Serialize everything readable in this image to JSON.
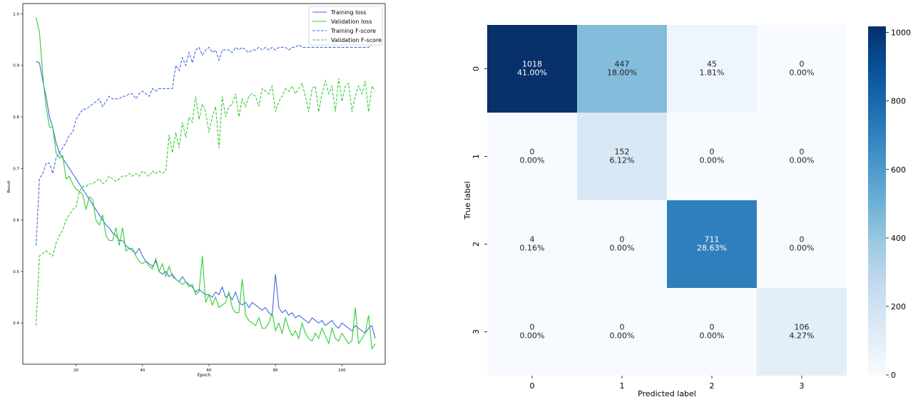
{
  "chart_data": [
    {
      "type": "line",
      "title": "",
      "xlabel": "Epoch",
      "ylabel": "Result",
      "xlim": [
        4,
        113
      ],
      "ylim": [
        0.32,
        1.02
      ],
      "xticks": [
        20,
        40,
        60,
        80,
        100
      ],
      "yticks": [
        0.4,
        0.5,
        0.6,
        0.7,
        0.8,
        0.9,
        1.0
      ],
      "grid": false,
      "legend_position": "top-right",
      "x": [
        8,
        9,
        10,
        11,
        12,
        13,
        14,
        15,
        16,
        17,
        18,
        19,
        20,
        21,
        22,
        23,
        24,
        25,
        26,
        27,
        28,
        29,
        30,
        31,
        32,
        33,
        34,
        35,
        36,
        37,
        38,
        39,
        40,
        41,
        42,
        43,
        44,
        45,
        46,
        47,
        48,
        49,
        50,
        51,
        52,
        53,
        54,
        55,
        56,
        57,
        58,
        59,
        60,
        61,
        62,
        63,
        64,
        65,
        66,
        67,
        68,
        69,
        70,
        71,
        72,
        73,
        74,
        75,
        76,
        77,
        78,
        79,
        80,
        81,
        82,
        83,
        84,
        85,
        86,
        87,
        88,
        89,
        90,
        91,
        92,
        93,
        94,
        95,
        96,
        97,
        98,
        99,
        100,
        101,
        102,
        103,
        104,
        105,
        106,
        107,
        108,
        109,
        110
      ],
      "series": [
        {
          "name": "Training loss",
          "color": "#4169e1",
          "dash": "solid",
          "values": [
            0.908,
            0.905,
            0.87,
            0.84,
            0.8,
            0.78,
            0.75,
            0.73,
            0.72,
            0.71,
            0.7,
            0.69,
            0.68,
            0.67,
            0.66,
            0.65,
            0.64,
            0.63,
            0.62,
            0.61,
            0.6,
            0.59,
            0.585,
            0.575,
            0.57,
            0.56,
            0.56,
            0.55,
            0.545,
            0.54,
            0.535,
            0.545,
            0.53,
            0.52,
            0.515,
            0.51,
            0.52,
            0.5,
            0.495,
            0.5,
            0.49,
            0.495,
            0.485,
            0.48,
            0.49,
            0.48,
            0.475,
            0.47,
            0.46,
            0.465,
            0.46,
            0.455,
            0.455,
            0.45,
            0.46,
            0.455,
            0.47,
            0.45,
            0.455,
            0.445,
            0.46,
            0.44,
            0.435,
            0.44,
            0.43,
            0.44,
            0.435,
            0.43,
            0.425,
            0.43,
            0.42,
            0.415,
            0.495,
            0.43,
            0.42,
            0.425,
            0.415,
            0.42,
            0.41,
            0.415,
            0.41,
            0.405,
            0.4,
            0.41,
            0.405,
            0.4,
            0.405,
            0.395,
            0.4,
            0.405,
            0.395,
            0.39,
            0.4,
            0.395,
            0.39,
            0.385,
            0.395,
            0.39,
            0.385,
            0.38,
            0.39,
            0.395,
            0.37
          ]
        },
        {
          "name": "Validation loss",
          "color": "#32cd32",
          "dash": "solid",
          "values": [
            0.993,
            0.965,
            0.88,
            0.82,
            0.78,
            0.78,
            0.73,
            0.72,
            0.725,
            0.68,
            0.685,
            0.67,
            0.66,
            0.655,
            0.65,
            0.62,
            0.645,
            0.64,
            0.6,
            0.59,
            0.61,
            0.57,
            0.56,
            0.56,
            0.585,
            0.55,
            0.585,
            0.54,
            0.545,
            0.545,
            0.53,
            0.52,
            0.515,
            0.52,
            0.51,
            0.505,
            0.525,
            0.5,
            0.515,
            0.49,
            0.51,
            0.49,
            0.485,
            0.48,
            0.475,
            0.48,
            0.47,
            0.475,
            0.455,
            0.46,
            0.53,
            0.44,
            0.455,
            0.435,
            0.45,
            0.43,
            0.435,
            0.44,
            0.46,
            0.43,
            0.42,
            0.42,
            0.485,
            0.415,
            0.405,
            0.4,
            0.395,
            0.41,
            0.39,
            0.39,
            0.4,
            0.42,
            0.385,
            0.4,
            0.38,
            0.41,
            0.39,
            0.375,
            0.385,
            0.37,
            0.4,
            0.38,
            0.37,
            0.365,
            0.38,
            0.37,
            0.39,
            0.375,
            0.36,
            0.39,
            0.37,
            0.365,
            0.38,
            0.37,
            0.36,
            0.365,
            0.43,
            0.36,
            0.37,
            0.38,
            0.415,
            0.35,
            0.36
          ]
        },
        {
          "name": "Training F-score",
          "color": "#4169e1",
          "dash": "dashed",
          "values": [
            0.55,
            0.68,
            0.69,
            0.71,
            0.71,
            0.69,
            0.72,
            0.73,
            0.74,
            0.75,
            0.765,
            0.77,
            0.795,
            0.805,
            0.815,
            0.815,
            0.82,
            0.825,
            0.83,
            0.835,
            0.82,
            0.83,
            0.84,
            0.835,
            0.835,
            0.835,
            0.84,
            0.84,
            0.845,
            0.845,
            0.835,
            0.845,
            0.85,
            0.845,
            0.84,
            0.855,
            0.85,
            0.855,
            0.855,
            0.855,
            0.855,
            0.855,
            0.9,
            0.89,
            0.915,
            0.9,
            0.925,
            0.905,
            0.93,
            0.935,
            0.92,
            0.93,
            0.935,
            0.925,
            0.93,
            0.91,
            0.93,
            0.93,
            0.93,
            0.925,
            0.935,
            0.93,
            0.935,
            0.93,
            0.925,
            0.93,
            0.93,
            0.935,
            0.93,
            0.935,
            0.93,
            0.935,
            0.93,
            0.935,
            0.935,
            0.935,
            0.93,
            0.935,
            0.935,
            0.94,
            0.935,
            0.935,
            0.935,
            0.935,
            0.935,
            0.935,
            0.935,
            0.935,
            0.935,
            0.935,
            0.935,
            0.935,
            0.935,
            0.935,
            0.935,
            0.935,
            0.935,
            0.935,
            0.935,
            0.935,
            0.935,
            0.94,
            0.94
          ]
        },
        {
          "name": "Validation F-score",
          "color": "#32cd32",
          "dash": "dashed",
          "values": [
            0.395,
            0.53,
            0.535,
            0.54,
            0.535,
            0.53,
            0.555,
            0.57,
            0.58,
            0.6,
            0.61,
            0.62,
            0.625,
            0.655,
            0.665,
            0.665,
            0.67,
            0.67,
            0.675,
            0.68,
            0.67,
            0.675,
            0.685,
            0.68,
            0.675,
            0.68,
            0.685,
            0.685,
            0.69,
            0.685,
            0.69,
            0.685,
            0.695,
            0.69,
            0.685,
            0.695,
            0.69,
            0.695,
            0.69,
            0.695,
            0.765,
            0.73,
            0.77,
            0.74,
            0.79,
            0.76,
            0.8,
            0.79,
            0.84,
            0.795,
            0.825,
            0.81,
            0.77,
            0.8,
            0.82,
            0.74,
            0.84,
            0.8,
            0.82,
            0.825,
            0.845,
            0.8,
            0.835,
            0.82,
            0.84,
            0.845,
            0.84,
            0.82,
            0.855,
            0.85,
            0.845,
            0.86,
            0.81,
            0.83,
            0.84,
            0.855,
            0.85,
            0.86,
            0.845,
            0.855,
            0.865,
            0.84,
            0.81,
            0.855,
            0.86,
            0.81,
            0.845,
            0.87,
            0.845,
            0.86,
            0.81,
            0.875,
            0.83,
            0.86,
            0.865,
            0.81,
            0.84,
            0.86,
            0.845,
            0.87,
            0.81,
            0.86,
            0.85
          ]
        }
      ]
    },
    {
      "type": "heatmap",
      "title": "",
      "xlabel": "Predicted label",
      "ylabel": "True label",
      "x_categories": [
        "0",
        "1",
        "2",
        "3"
      ],
      "y_categories": [
        "0",
        "1",
        "2",
        "3"
      ],
      "values": [
        [
          1018,
          447,
          45,
          0
        ],
        [
          0,
          152,
          0,
          0
        ],
        [
          4,
          0,
          711,
          0
        ],
        [
          0,
          0,
          0,
          106
        ]
      ],
      "percent_labels": [
        [
          "41.00%",
          "18.00%",
          "1.81%",
          "0.00%"
        ],
        [
          "0.00%",
          "6.12%",
          "0.00%",
          "0.00%"
        ],
        [
          "0.16%",
          "0.00%",
          "28.63%",
          "0.00%"
        ],
        [
          "0.00%",
          "0.00%",
          "0.00%",
          "4.27%"
        ]
      ],
      "colormap": "Blues",
      "colorbar": {
        "min": 0,
        "max": 1018,
        "ticks": [
          0,
          200,
          400,
          600,
          800,
          1000
        ]
      }
    }
  ]
}
